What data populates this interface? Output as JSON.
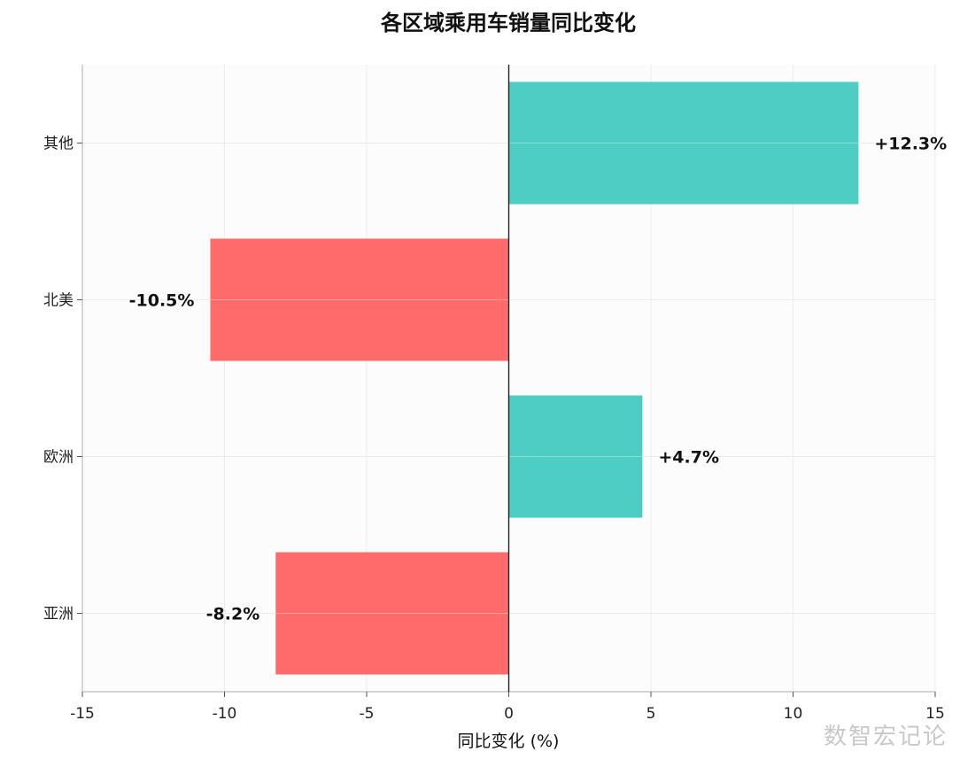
{
  "chart_data": {
    "type": "bar",
    "orientation": "horizontal",
    "title": "各区域乘用车销量同比变化",
    "xlabel": "同比变化 (%)",
    "ylabel": "",
    "categories": [
      "亚洲",
      "欧洲",
      "北美",
      "其他"
    ],
    "values": [
      -8.2,
      4.7,
      -10.5,
      12.3
    ],
    "data_labels": [
      "-8.2%",
      "+4.7%",
      "-10.5%",
      "+12.3%"
    ],
    "xlim": [
      -15,
      15
    ],
    "x_ticks": [
      -15,
      -10,
      -5,
      0,
      5,
      10,
      15
    ],
    "x_tick_labels": [
      "-15",
      "-10",
      "-5",
      "0",
      "5",
      "10",
      "15"
    ],
    "grid": true,
    "colors": {
      "positive": "#4ecdc4",
      "negative": "#ff6b6b",
      "zero_line": "#222222",
      "plot_background": "#fcfcfc"
    }
  },
  "watermark": "数智宏记论"
}
